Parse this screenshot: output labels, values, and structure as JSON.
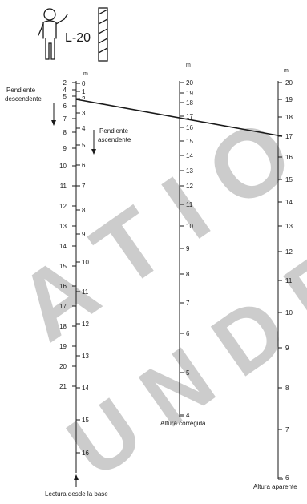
{
  "figure": {
    "model": "L-20",
    "unit": "m",
    "left_scale": {
      "outer": [
        "2",
        "4",
        "5",
        "6",
        "7",
        "8",
        "9",
        "10",
        "11",
        "12",
        "13",
        "14",
        "15",
        "16",
        "17",
        "18",
        "19",
        "20",
        "21"
      ],
      "inner": [
        "0",
        "1",
        "2",
        "3",
        "4",
        "5",
        "6",
        "7",
        "8",
        "9",
        "10",
        "11",
        "12",
        "13",
        "14",
        "15",
        "16"
      ]
    },
    "middle_scale": {
      "labels": [
        "20",
        "19",
        "18",
        "17",
        "16",
        "15",
        "14",
        "13",
        "12",
        "11",
        "10",
        "9",
        "8",
        "7",
        "6",
        "5",
        "4"
      ],
      "caption": "Altura corregida"
    },
    "right_scale": {
      "labels": [
        "20",
        "19",
        "18",
        "17",
        "16",
        "15",
        "14",
        "13",
        "12",
        "11",
        "10",
        "9",
        "8",
        "7",
        "6"
      ],
      "caption": "Altura aparente"
    },
    "annotations": {
      "descending": [
        "Pendiente",
        "descendente"
      ],
      "ascending": [
        "Pendiente",
        "ascendente"
      ],
      "base_reading": "Lectura desde la base"
    },
    "colors": {
      "ink": "#1a1a1a",
      "watermark": "#c9d3e2",
      "background": "#ffffff"
    },
    "icons": [
      "person-icon",
      "target-pole-icon"
    ]
  }
}
